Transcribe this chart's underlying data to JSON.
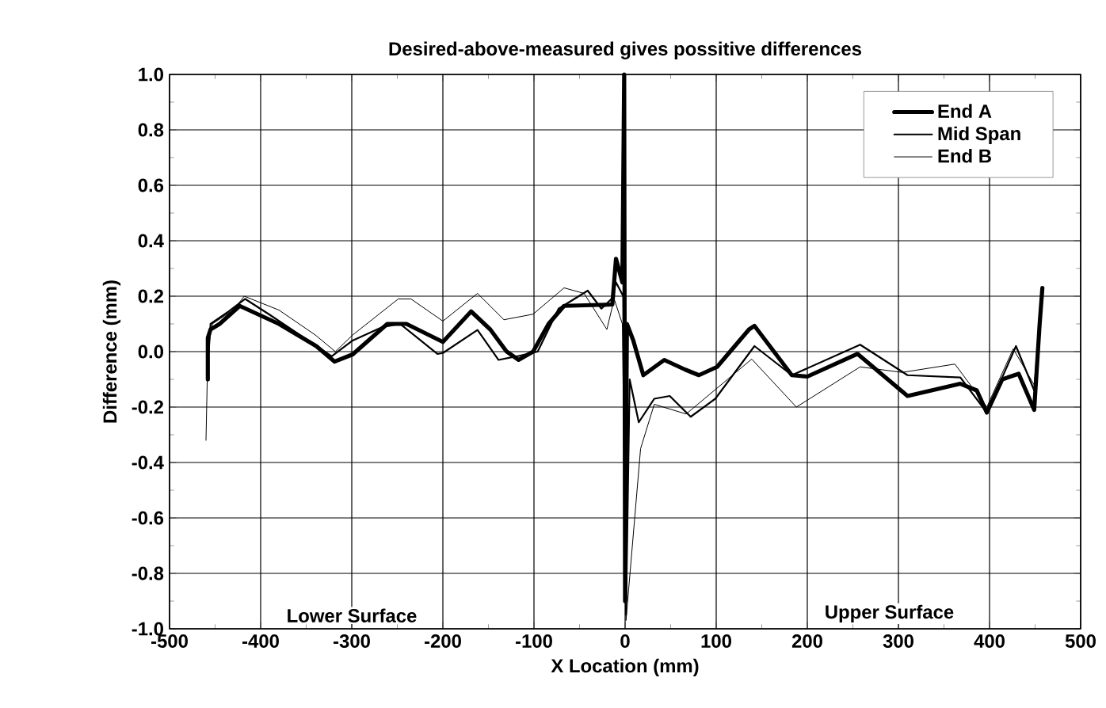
{
  "chart_data": {
    "type": "line",
    "title": "Desired-above-measured gives possitive differences",
    "xlabel": "X Location (mm)",
    "ylabel": "Difference (mm)",
    "xlim": [
      -500,
      500
    ],
    "xticks": [
      -500,
      -400,
      -300,
      -200,
      -100,
      0,
      100,
      200,
      300,
      400,
      500
    ],
    "ylim": [
      -1.0,
      1.0
    ],
    "yticks": [
      {
        "value": -1.0,
        "label": "-1.0"
      },
      {
        "value": -0.8,
        "label": "-0.8"
      },
      {
        "value": -0.6,
        "label": "-0.6"
      },
      {
        "value": -0.4,
        "label": "-0.4"
      },
      {
        "value": -0.2,
        "label": "-0.2"
      },
      {
        "value": 0.0,
        "label": "0.0"
      },
      {
        "value": 0.2,
        "label": "0.2"
      },
      {
        "value": 0.4,
        "label": "0.4"
      },
      {
        "value": 0.6,
        "label": "0.6"
      },
      {
        "value": 0.8,
        "label": "0.8"
      },
      {
        "value": 1.0,
        "label": "1.0"
      }
    ],
    "grid": true,
    "legend": "top right",
    "marker": "none",
    "line_style": "solid",
    "annotations": [
      "Lower Surface",
      "Upper Surface"
    ],
    "series": [
      {
        "name": "End A",
        "color": "#000000",
        "x": [
          -458,
          -458,
          -455,
          -445,
          -423,
          -380,
          -339,
          -319,
          -299,
          -261,
          -240,
          -200,
          -169,
          -148,
          -130,
          -117,
          -101,
          -84,
          -67,
          -14,
          -10,
          -3,
          -1,
          0,
          2,
          9,
          20,
          43,
          66,
          81,
          101,
          136,
          142,
          183,
          200,
          255,
          310,
          368,
          386,
          397,
          414,
          432,
          449,
          455,
          458
        ],
        "values": [
          -0.1,
          0.05,
          0.08,
          0.1,
          0.165,
          0.1,
          0.02,
          -0.036,
          -0.01,
          0.1,
          0.1,
          0.035,
          0.145,
          0.08,
          0.0,
          -0.03,
          0.0,
          0.1,
          0.165,
          0.17,
          0.335,
          0.25,
          1.0,
          -0.9,
          0.1,
          0.04,
          -0.085,
          -0.03,
          -0.065,
          -0.085,
          -0.055,
          0.08,
          0.093,
          -0.085,
          -0.09,
          -0.008,
          -0.16,
          -0.116,
          -0.14,
          -0.22,
          -0.1,
          -0.08,
          -0.21,
          0.1,
          0.23
        ]
      },
      {
        "name": "Mid Span",
        "color": "#000000",
        "x": [
          -457,
          -455,
          -435,
          -417,
          -391,
          -357,
          -322,
          -299,
          -267,
          -247,
          -206,
          -200,
          -162,
          -139,
          -119,
          -96,
          -73,
          -41,
          -26,
          -15,
          -10,
          -2,
          1,
          5,
          15,
          32,
          49,
          72,
          99,
          142,
          183,
          258,
          310,
          368,
          397,
          429,
          449,
          455
        ],
        "values": [
          0.0,
          0.1,
          0.145,
          0.19,
          0.135,
          0.06,
          -0.017,
          0.04,
          0.088,
          0.1,
          -0.008,
          -0.005,
          0.078,
          -0.03,
          -0.017,
          0.0,
          0.155,
          0.22,
          0.155,
          0.19,
          0.25,
          0.2,
          -0.95,
          -0.1,
          -0.255,
          -0.17,
          -0.16,
          -0.235,
          -0.17,
          0.02,
          -0.085,
          0.025,
          -0.085,
          -0.093,
          -0.22,
          0.02,
          -0.14,
          0.1
        ]
      },
      {
        "name": "End B",
        "color": "#000000",
        "x": [
          -460,
          -458,
          -453,
          -430,
          -418,
          -380,
          -340,
          -318,
          -299,
          -249,
          -235,
          -200,
          -162,
          -133,
          -101,
          -67,
          -45,
          -20,
          -12,
          -3,
          1,
          17,
          32,
          67,
          139,
          188,
          258,
          304,
          362,
          397,
          426,
          449,
          455
        ],
        "values": [
          -0.32,
          0.0,
          0.1,
          0.15,
          0.2,
          0.15,
          0.06,
          0.0,
          0.06,
          0.19,
          0.19,
          0.11,
          0.21,
          0.115,
          0.135,
          0.23,
          0.21,
          0.08,
          0.19,
          0.1,
          -0.97,
          -0.35,
          -0.19,
          -0.225,
          -0.027,
          -0.2,
          -0.055,
          -0.075,
          -0.045,
          -0.2,
          0.01,
          -0.12,
          0.05
        ]
      }
    ]
  }
}
